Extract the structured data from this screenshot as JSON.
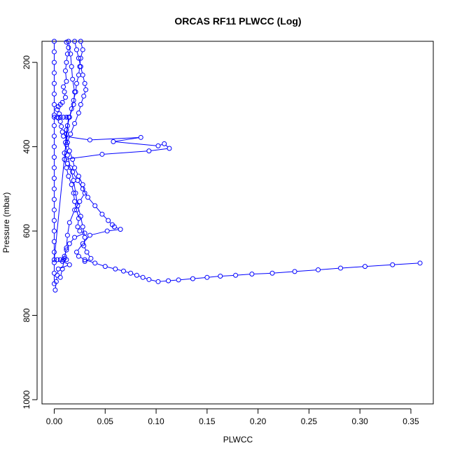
{
  "chart_data": {
    "type": "scatter",
    "title": "ORCAS RF11 PLWCC (Log)",
    "xlabel": "PLWCC",
    "ylabel": "Pressure (mbar)",
    "xlim": [
      -0.012,
      0.372
    ],
    "ylim": [
      1010,
      150
    ],
    "y_reversed": true,
    "grid": false,
    "legend": "none",
    "color": "#0000ff",
    "x_ticks": [
      0.0,
      0.05,
      0.1,
      0.15,
      0.2,
      0.25,
      0.3,
      0.35
    ],
    "x_tick_labels": [
      "0.00",
      "0.05",
      "0.10",
      "0.15",
      "0.20",
      "0.25",
      "0.30",
      "0.35"
    ],
    "y_ticks": [
      200,
      400,
      600,
      800,
      1000
    ],
    "y_tick_labels": [
      "200",
      "400",
      "600",
      "800",
      "1000"
    ],
    "series": [
      {
        "points": [
          [
            0.012,
            152
          ],
          [
            0.014,
            165
          ],
          [
            0.013,
            180
          ],
          [
            0.012,
            200
          ],
          [
            0.011,
            220
          ],
          [
            0.012,
            245
          ],
          [
            0.009,
            258
          ],
          [
            0.01,
            270
          ],
          [
            0.011,
            283
          ],
          [
            0.008,
            295
          ],
          [
            0.006,
            300
          ],
          [
            0.004,
            305
          ],
          [
            0.003,
            312
          ],
          [
            0.005,
            322
          ],
          [
            0.004,
            332
          ],
          [
            0.006,
            340
          ],
          [
            0.007,
            352
          ],
          [
            0.008,
            365
          ],
          [
            0.009,
            375
          ],
          [
            0.035,
            384
          ],
          [
            0.085,
            378
          ],
          [
            0.058,
            388
          ],
          [
            0.102,
            398
          ],
          [
            0.108,
            393
          ],
          [
            0.113,
            404
          ],
          [
            0.093,
            410
          ],
          [
            0.047,
            418
          ],
          [
            0.01,
            430
          ],
          [
            0.012,
            450
          ],
          [
            0.014,
            470
          ],
          [
            0.017,
            490
          ],
          [
            0.019,
            510
          ],
          [
            0.02,
            530
          ],
          [
            0.022,
            550
          ],
          [
            0.024,
            570
          ],
          [
            0.023,
            590
          ],
          [
            0.025,
            600
          ],
          [
            0.03,
            605
          ],
          [
            0.02,
            615
          ],
          [
            0.015,
            630
          ],
          [
            0.012,
            645
          ],
          [
            0.01,
            660
          ],
          [
            0.008,
            672
          ],
          [
            0.015,
            680
          ],
          [
            0.004,
            690
          ],
          [
            0.003,
            705
          ],
          [
            0.002,
            720
          ],
          [
            0.001,
            740
          ]
        ]
      },
      {
        "points": [
          [
            0.02,
            150
          ],
          [
            0.022,
            170
          ],
          [
            0.024,
            190
          ],
          [
            0.026,
            210
          ],
          [
            0.028,
            230
          ],
          [
            0.03,
            250
          ],
          [
            0.031,
            265
          ],
          [
            0.029,
            280
          ],
          [
            0.026,
            300
          ],
          [
            0.024,
            320
          ],
          [
            0.02,
            345
          ],
          [
            0.016,
            370
          ],
          [
            0.012,
            395
          ],
          [
            0.01,
            415
          ],
          [
            0.013,
            440
          ],
          [
            0.018,
            460
          ],
          [
            0.023,
            480
          ],
          [
            0.028,
            500
          ],
          [
            0.033,
            520
          ],
          [
            0.04,
            540
          ],
          [
            0.047,
            560
          ],
          [
            0.053,
            575
          ],
          [
            0.057,
            585
          ],
          [
            0.059,
            590
          ],
          [
            0.065,
            596
          ],
          [
            0.052,
            600
          ],
          [
            0.035,
            610
          ],
          [
            0.028,
            630
          ],
          [
            0.022,
            650
          ],
          [
            0.024,
            660
          ],
          [
            0.03,
            668
          ],
          [
            0.04,
            676
          ],
          [
            0.05,
            684
          ],
          [
            0.06,
            690
          ],
          [
            0.068,
            695
          ],
          [
            0.075,
            700
          ],
          [
            0.081,
            705
          ],
          [
            0.087,
            710
          ],
          [
            0.093,
            715
          ],
          [
            0.102,
            720
          ],
          [
            0.112,
            718
          ],
          [
            0.122,
            716
          ],
          [
            0.136,
            713
          ],
          [
            0.15,
            710
          ],
          [
            0.163,
            707
          ],
          [
            0.178,
            705
          ],
          [
            0.194,
            702
          ],
          [
            0.214,
            700
          ],
          [
            0.236,
            696
          ],
          [
            0.259,
            692
          ],
          [
            0.281,
            688
          ],
          [
            0.305,
            684
          ],
          [
            0.332,
            680
          ],
          [
            0.359,
            676
          ]
        ]
      },
      {
        "points": [
          [
            0.026,
            150
          ],
          [
            0.028,
            170
          ],
          [
            0.026,
            190
          ],
          [
            0.025,
            210
          ],
          [
            0.024,
            230
          ],
          [
            0.022,
            250
          ],
          [
            0.021,
            270
          ],
          [
            0.019,
            290
          ],
          [
            0.017,
            310
          ],
          [
            0.015,
            330
          ],
          [
            0.013,
            350
          ],
          [
            0.012,
            370
          ],
          [
            0.013,
            390
          ],
          [
            0.015,
            410
          ],
          [
            0.018,
            430
          ],
          [
            0.02,
            450
          ],
          [
            0.024,
            470
          ],
          [
            0.028,
            490
          ],
          [
            0.03,
            510
          ],
          [
            0.025,
            530
          ],
          [
            0.02,
            550
          ],
          [
            0.015,
            580
          ],
          [
            0.013,
            610
          ],
          [
            0.012,
            640
          ],
          [
            0.01,
            665
          ],
          [
            0.008,
            690
          ],
          [
            0.006,
            710
          ]
        ]
      },
      {
        "points": [
          [
            0.014,
            150
          ],
          [
            0.016,
            180
          ],
          [
            0.017,
            210
          ],
          [
            0.018,
            240
          ],
          [
            0.02,
            270
          ],
          [
            0.019,
            300
          ],
          [
            0.015,
            330
          ],
          [
            0.012,
            360
          ],
          [
            0.011,
            390
          ],
          [
            0.013,
            420
          ],
          [
            0.016,
            450
          ],
          [
            0.019,
            480
          ],
          [
            0.021,
            510
          ],
          [
            0.023,
            540
          ],
          [
            0.026,
            565
          ],
          [
            0.028,
            590
          ],
          [
            0.03,
            615
          ],
          [
            0.029,
            635
          ],
          [
            0.032,
            650
          ],
          [
            0.036,
            665
          ],
          [
            0.03,
            672
          ]
        ]
      },
      {
        "points": [
          [
            0.0,
            150
          ],
          [
            0.0,
            175
          ],
          [
            0.0,
            200
          ],
          [
            0.0,
            225
          ],
          [
            0.0,
            250
          ],
          [
            0.0,
            275
          ],
          [
            0.0,
            300
          ],
          [
            0.0,
            325
          ],
          [
            0.0,
            350
          ],
          [
            0.0,
            375
          ],
          [
            0.0,
            400
          ],
          [
            0.0,
            425
          ],
          [
            0.0,
            450
          ],
          [
            0.0,
            475
          ],
          [
            0.0,
            500
          ],
          [
            0.0,
            525
          ],
          [
            0.0,
            550
          ],
          [
            0.0,
            575
          ],
          [
            0.0,
            600
          ],
          [
            0.0,
            625
          ],
          [
            0.0,
            650
          ],
          [
            0.0,
            675
          ],
          [
            0.0,
            700
          ],
          [
            0.0,
            725
          ]
        ]
      },
      {
        "points": [
          [
            0.0,
            330
          ],
          [
            0.003,
            330
          ],
          [
            0.006,
            330
          ],
          [
            0.009,
            330
          ],
          [
            0.012,
            330
          ],
          [
            0.014,
            330
          ],
          [
            0.0,
            668
          ],
          [
            0.003,
            668
          ],
          [
            0.006,
            668
          ],
          [
            0.009,
            668
          ],
          [
            0.012,
            668
          ]
        ]
      }
    ]
  }
}
